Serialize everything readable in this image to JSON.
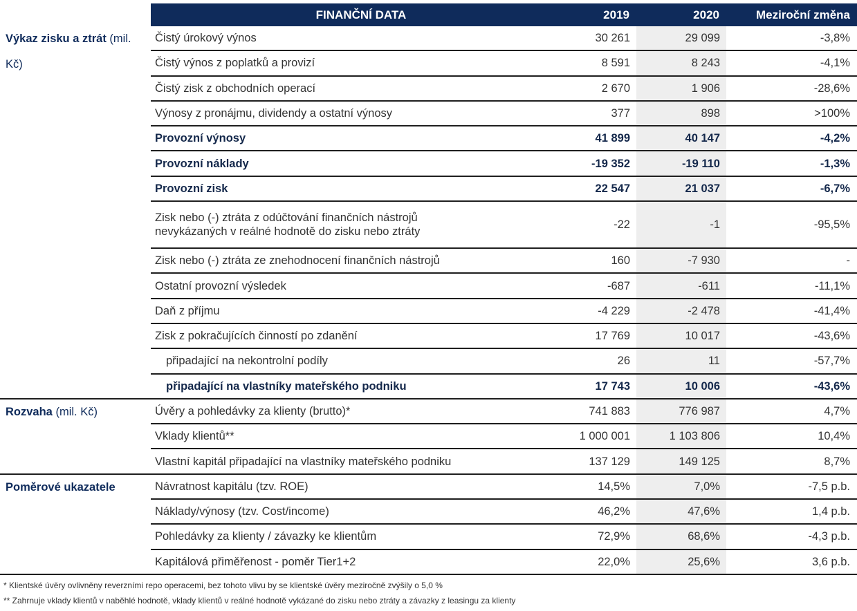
{
  "header": {
    "title": "FINANČNÍ DATA",
    "columns": [
      "2019",
      "2020",
      "Meziroční změna"
    ]
  },
  "sections": [
    {
      "title": "Výkaz zisku a ztrát",
      "unit": "(mil. Kč)",
      "rows": [
        {
          "label": "Čistý úrokový výnos",
          "values": [
            "30 261",
            "29 099",
            "-3,8%"
          ]
        },
        {
          "label": "Čistý výnos z poplatků a provizí",
          "values": [
            "8 591",
            "8 243",
            "-4,1%"
          ]
        },
        {
          "label": "Čistý zisk z obchodních operací",
          "values": [
            "2 670",
            "1 906",
            "-28,6%"
          ]
        },
        {
          "label": "Výnosy z pronájmu, dividendy a ostatní výnosy",
          "values": [
            "377",
            "898",
            ">100%"
          ]
        },
        {
          "label": "Provozní výnosy",
          "values": [
            "41 899",
            "40 147",
            "-4,2%"
          ],
          "bold": true
        },
        {
          "label": "Provozní náklady",
          "values": [
            "-19 352",
            "-19 110",
            "-1,3%"
          ],
          "bold": true
        },
        {
          "label": "Provozní zisk",
          "values": [
            "22 547",
            "21 037",
            "-6,7%"
          ],
          "bold": true
        },
        {
          "label": "Zisk nebo (-) ztráta z odúčtování finančních nástrojů nevykázaných v reálné hodnotě do zisku nebo ztráty",
          "values": [
            "-22",
            "-1",
            "-95,5%"
          ]
        },
        {
          "label": "Zisk nebo (-) ztráta ze znehodnocení finančních nástrojů",
          "values": [
            "160",
            "-7 930",
            "-"
          ]
        },
        {
          "label": "Ostatní provozní výsledek",
          "values": [
            "-687",
            "-611",
            "-11,1%"
          ]
        },
        {
          "label": "Daň z příjmu",
          "values": [
            "-4 229",
            "-2 478",
            "-41,4%"
          ]
        },
        {
          "label": "Zisk z pokračujících činností po zdanění",
          "values": [
            "17 769",
            "10 017",
            "-43,6%"
          ]
        },
        {
          "label": "připadající na nekontrolní podíly",
          "values": [
            "26",
            "11",
            "-57,7%"
          ],
          "indent": true
        },
        {
          "label": "připadající na vlastníky mateřského podniku",
          "values": [
            "17 743",
            "10 006",
            "-43,6%"
          ],
          "bold": true,
          "indent": true
        }
      ]
    },
    {
      "title": "Rozvaha",
      "unit": "(mil. Kč)",
      "rows": [
        {
          "label": "Úvěry a pohledávky za klienty (brutto)*",
          "values": [
            "741 883",
            "776 987",
            "4,7%"
          ]
        },
        {
          "label": "Vklady klientů**",
          "values": [
            "1 000 001",
            "1 103 806",
            "10,4%"
          ]
        },
        {
          "label": "Vlastní kapitál připadající na vlastníky mateřského podniku",
          "values": [
            "137 129",
            "149 125",
            "8,7%"
          ]
        }
      ]
    },
    {
      "title": "Poměrové ukazatele",
      "rows": [
        {
          "label": "Návratnost kapitálu (tzv. ROE)",
          "values": [
            "14,5%",
            "7,0%",
            "-7,5 p.b."
          ]
        },
        {
          "label": "Náklady/výnosy (tzv. Cost/income)",
          "values": [
            "46,2%",
            "47,6%",
            "1,4 p.b."
          ]
        },
        {
          "label": "Pohledávky za klienty / závazky ke klientům",
          "values": [
            "72,9%",
            "68,6%",
            "-4,3 p.b."
          ]
        },
        {
          "label": "Kapitálová přiměřenost - poměr Tier1+2",
          "values": [
            "22,0%",
            "25,6%",
            "3,6 p.b."
          ]
        }
      ]
    }
  ],
  "footnotes": [
    "* Klientské úvěry ovlivněny reverzními repo operacemi, bez tohoto vlivu by se klientské úvěry meziročně zvýšily o 5,0 %",
    "** Zahrnuje vklady klientů v naběhlé hodnotě, vklady klientů v reálné hodnotě vykázané do zisku nebo ztráty a závazky z leasingu za klienty"
  ]
}
